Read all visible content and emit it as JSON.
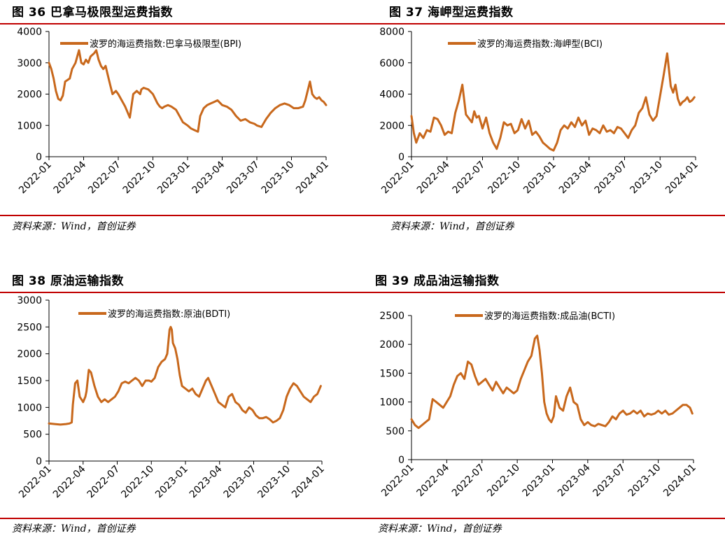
{
  "colors": {
    "line": "#c8681c",
    "rule": "#c00000",
    "axis": "#000000"
  },
  "source_text": "资料来源：Wind，首创证券",
  "charts": [
    {
      "figure_title": "图 36 巴拿马极限型运费指数",
      "source": "资料来源：Wind，首创证券",
      "chart_data": {
        "type": "line",
        "title": "图 36 巴拿马极限型运费指数",
        "legend": "波罗的海运费指数:巴拿马极限型(BPI)",
        "legend_position": "top-center",
        "ylim": [
          0,
          4000
        ],
        "yticks": [
          0,
          1000,
          2000,
          3000,
          4000
        ],
        "xtick_labels": [
          "2022-01",
          "2022-04",
          "2022-07",
          "2022-10",
          "2023-01",
          "2023-04",
          "2023-07",
          "2023-10",
          "2024-01"
        ],
        "grid": false,
        "series": [
          {
            "name": "波罗的海运费指数:巴拿马极限型(BPI)",
            "x": [
              0,
              0.2,
              0.4,
              0.6,
              0.8,
              1.0,
              1.2,
              1.4,
              1.6,
              1.8,
              2.0,
              2.3,
              2.6,
              2.8,
              3.0,
              3.2,
              3.4,
              3.6,
              3.9,
              4.1,
              4.3,
              4.5,
              4.7,
              4.9,
              5.1,
              5.3,
              5.5,
              5.8,
              6.0,
              6.3,
              6.6,
              7.0,
              7.3,
              7.6,
              7.9,
              8.0,
              8.2,
              8.6,
              9.0,
              9.4,
              9.6,
              9.8,
              10.0,
              10.3,
              10.6,
              11.0,
              11.3,
              11.6,
              11.8,
              12.0,
              12.3,
              12.6,
              12.9,
              13.1,
              13.4,
              13.7,
              14.0,
              14.3,
              14.6,
              15.0,
              15.4,
              15.8,
              16.2,
              16.6,
              17.0,
              17.4,
              17.8,
              18.0,
              18.4,
              18.8,
              19.2,
              19.6,
              20.0,
              20.4,
              20.8,
              21.2,
              21.6,
              22.0,
              22.2,
              22.4,
              22.6,
              22.8,
              23.0,
              23.2,
              23.4,
              23.6,
              23.8,
              24.0
            ],
            "values": [
              3000,
              2800,
              2500,
              2100,
              1850,
              1800,
              1950,
              2400,
              2450,
              2500,
              2800,
              3000,
              3400,
              3000,
              2950,
              3100,
              3000,
              3200,
              3300,
              3400,
              3100,
              2900,
              2800,
              2900,
              2600,
              2300,
              2000,
              2100,
              2000,
              1800,
              1600,
              1250,
              2000,
              2100,
              2000,
              2150,
              2200,
              2150,
              2000,
              1700,
              1600,
              1550,
              1600,
              1650,
              1600,
              1500,
              1300,
              1100,
              1050,
              1000,
              900,
              850,
              800,
              1300,
              1550,
              1650,
              1700,
              1750,
              1800,
              1650,
              1600,
              1500,
              1300,
              1150,
              1200,
              1100,
              1050,
              1000,
              950,
              1200,
              1400,
              1550,
              1650,
              1700,
              1650,
              1550,
              1550,
              1600,
              1800,
              2100,
              2400,
              2000,
              1900,
              1850,
              1900,
              1800,
              1750,
              1650
            ]
          }
        ]
      }
    },
    {
      "figure_title": "图 37 海岬型运费指数",
      "source": "资料来源：Wind，首创证券",
      "chart_data": {
        "type": "line",
        "title": "图 37 海岬型运费指数",
        "legend": "波罗的海运费指数:海岬型(BCI)",
        "legend_position": "top-center",
        "ylim": [
          0,
          8000
        ],
        "yticks": [
          0,
          2000,
          4000,
          6000,
          8000
        ],
        "xtick_labels": [
          "2022-01",
          "2022-04",
          "2022-07",
          "2022-10",
          "2023-01",
          "2023-04",
          "2023-07",
          "2023-10",
          "2024-01"
        ],
        "grid": false,
        "series": [
          {
            "name": "波罗的海运费指数:海岬型(BCI)",
            "x": [
              0,
              0.2,
              0.4,
              0.7,
              1.0,
              1.3,
              1.6,
              1.9,
              2.2,
              2.5,
              2.8,
              3.1,
              3.4,
              3.7,
              4.0,
              4.3,
              4.6,
              4.9,
              5.1,
              5.3,
              5.5,
              5.7,
              6.0,
              6.3,
              6.6,
              6.9,
              7.2,
              7.5,
              7.8,
              8.1,
              8.4,
              8.7,
              9.0,
              9.3,
              9.6,
              9.9,
              10.2,
              10.5,
              10.8,
              11.1,
              11.4,
              11.7,
              12.0,
              12.3,
              12.6,
              12.9,
              13.2,
              13.5,
              13.8,
              14.1,
              14.4,
              14.7,
              15.0,
              15.3,
              15.6,
              15.9,
              16.2,
              16.5,
              16.8,
              17.1,
              17.4,
              17.7,
              18.0,
              18.3,
              18.6,
              18.9,
              19.2,
              19.5,
              19.8,
              20.1,
              20.4,
              20.7,
              21.0,
              21.3,
              21.6,
              21.9,
              22.1,
              22.3,
              22.5,
              22.7,
              22.9,
              23.1,
              23.3,
              23.5,
              23.7,
              23.9
            ],
            "values": [
              2600,
              1500,
              900,
              1500,
              1200,
              1700,
              1600,
              2500,
              2400,
              2000,
              1400,
              1600,
              1500,
              2800,
              3600,
              4600,
              2700,
              2400,
              2200,
              2900,
              2500,
              2600,
              1800,
              2500,
              1500,
              900,
              500,
              1200,
              2200,
              2000,
              2100,
              1500,
              1700,
              2400,
              1800,
              2300,
              1400,
              1600,
              1300,
              900,
              700,
              500,
              400,
              900,
              1700,
              2000,
              1800,
              2200,
              1900,
              2500,
              2000,
              2300,
              1400,
              1800,
              1700,
              1500,
              2000,
              1600,
              1700,
              1500,
              1900,
              1800,
              1500,
              1200,
              1700,
              2000,
              2800,
              3100,
              3800,
              2700,
              2300,
              2600,
              3900,
              5200,
              6600,
              4500,
              4100,
              4600,
              3700,
              3300,
              3500,
              3600,
              3800,
              3500,
              3600,
              3800
            ]
          }
        ]
      }
    },
    {
      "figure_title": "图 38 原油运输指数",
      "source": "资料来源：Wind，首创证券",
      "chart_data": {
        "type": "line",
        "title": "图 38 原油运输指数",
        "legend": "波罗的海运费指数:原油(BDTI)",
        "legend_position": "top-center",
        "ylim": [
          0,
          3000
        ],
        "yticks": [
          0,
          500,
          1000,
          1500,
          2000,
          2500,
          3000
        ],
        "xtick_labels": [
          "2022-01",
          "2022-04",
          "2022-07",
          "2022-10",
          "2023-01",
          "2023-04",
          "2023-07",
          "2023-10",
          "2024-01"
        ],
        "grid": false,
        "series": [
          {
            "name": "波罗的海运费指数:原油(BDTI)",
            "x": [
              0,
              0.5,
              1.0,
              1.5,
              1.8,
              2.0,
              2.1,
              2.3,
              2.5,
              2.7,
              3.0,
              3.2,
              3.3,
              3.5,
              3.7,
              4.0,
              4.3,
              4.6,
              4.9,
              5.2,
              5.5,
              5.8,
              6.1,
              6.4,
              6.7,
              7.0,
              7.3,
              7.6,
              7.9,
              8.2,
              8.5,
              8.8,
              9.0,
              9.3,
              9.6,
              9.9,
              10.2,
              10.4,
              10.6,
              10.7,
              10.8,
              10.9,
              11.1,
              11.3,
              11.5,
              11.7,
              12.0,
              12.3,
              12.6,
              12.9,
              13.2,
              13.5,
              13.8,
              14.0,
              14.3,
              14.6,
              14.9,
              15.2,
              15.5,
              15.8,
              16.1,
              16.4,
              16.7,
              17.0,
              17.3,
              17.6,
              17.9,
              18.2,
              18.5,
              18.8,
              19.1,
              19.4,
              19.7,
              20.0,
              20.3,
              20.6,
              20.9,
              21.2,
              21.5,
              21.8,
              22.1,
              22.4,
              22.7,
              23.0,
              23.3,
              23.6,
              23.9
            ],
            "values": [
              700,
              690,
              680,
              690,
              700,
              720,
              1050,
              1450,
              1500,
              1200,
              1100,
              1200,
              1300,
              1700,
              1650,
              1400,
              1200,
              1100,
              1150,
              1100,
              1150,
              1200,
              1300,
              1450,
              1480,
              1450,
              1500,
              1550,
              1500,
              1400,
              1500,
              1500,
              1480,
              1550,
              1750,
              1850,
              1900,
              2000,
              2450,
              2500,
              2450,
              2200,
              2100,
              1900,
              1600,
              1400,
              1350,
              1300,
              1350,
              1250,
              1200,
              1350,
              1500,
              1550,
              1400,
              1250,
              1100,
              1050,
              1000,
              1200,
              1250,
              1100,
              1050,
              950,
              900,
              1000,
              950,
              850,
              800,
              800,
              820,
              780,
              720,
              750,
              800,
              950,
              1200,
              1350,
              1450,
              1400,
              1300,
              1200,
              1150,
              1100,
              1200,
              1250,
              1400
            ]
          }
        ]
      }
    },
    {
      "figure_title": "图 39 成品油运输指数",
      "source": "资料来源：Wind，首创证券",
      "chart_data": {
        "type": "line",
        "title": "图 39 成品油运输指数",
        "legend": "波罗的海运费指数:成品油(BCTI)",
        "legend_position": "top-center",
        "ylim": [
          0,
          2500
        ],
        "yticks": [
          0,
          500,
          1000,
          1500,
          2000,
          2500
        ],
        "xtick_labels": [
          "2022-01",
          "2022-04",
          "2022-07",
          "2022-10",
          "2023-01",
          "2023-04",
          "2023-07",
          "2023-10",
          "2024-01"
        ],
        "grid": false,
        "series": [
          {
            "name": "波罗的海运费指数:成品油(BCTI)",
            "x": [
              0,
              0.3,
              0.6,
              0.9,
              1.2,
              1.5,
              1.8,
              2.1,
              2.4,
              2.7,
              3.0,
              3.3,
              3.6,
              3.9,
              4.2,
              4.5,
              4.8,
              5.1,
              5.4,
              5.7,
              6.0,
              6.3,
              6.6,
              6.9,
              7.2,
              7.5,
              7.8,
              8.1,
              8.4,
              8.7,
              9.0,
              9.3,
              9.6,
              9.9,
              10.2,
              10.5,
              10.7,
              10.9,
              11.1,
              11.3,
              11.5,
              11.7,
              11.9,
              12.1,
              12.3,
              12.6,
              12.9,
              13.2,
              13.5,
              13.8,
              14.1,
              14.4,
              14.7,
              15.0,
              15.3,
              15.6,
              15.9,
              16.2,
              16.5,
              16.8,
              17.1,
              17.4,
              17.7,
              18.0,
              18.3,
              18.6,
              18.9,
              19.2,
              19.5,
              19.8,
              20.1,
              20.4,
              20.7,
              21.0,
              21.3,
              21.6,
              21.9,
              22.2,
              22.5,
              22.8,
              23.1,
              23.4,
              23.7,
              23.9
            ],
            "values": [
              700,
              600,
              550,
              600,
              650,
              700,
              1050,
              1000,
              950,
              900,
              1000,
              1100,
              1300,
              1450,
              1500,
              1400,
              1700,
              1650,
              1450,
              1300,
              1350,
              1400,
              1300,
              1200,
              1350,
              1250,
              1150,
              1250,
              1200,
              1150,
              1200,
              1400,
              1550,
              1700,
              1800,
              2100,
              2150,
              1900,
              1500,
              1000,
              800,
              700,
              650,
              750,
              1100,
              900,
              850,
              1100,
              1250,
              1000,
              950,
              700,
              600,
              650,
              600,
              580,
              620,
              600,
              580,
              650,
              750,
              700,
              800,
              850,
              780,
              800,
              850,
              800,
              850,
              750,
              800,
              780,
              800,
              850,
              800,
              850,
              780,
              800,
              850,
              900,
              950,
              950,
              900,
              800
            ]
          }
        ]
      }
    }
  ]
}
